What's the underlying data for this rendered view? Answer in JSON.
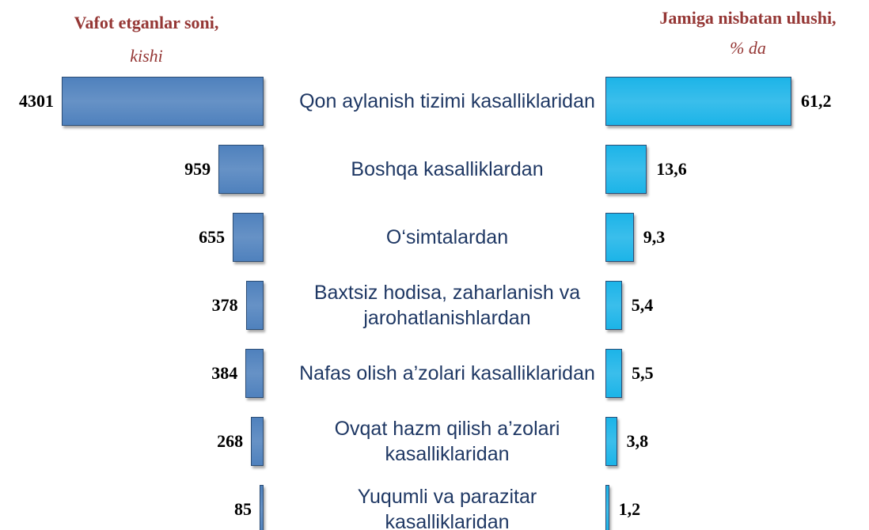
{
  "chart_data": {
    "type": "butterfly",
    "categories": [
      "Qon aylanish tizimi kasalliklaridan",
      "Boshqa kasalliklardan",
      "O‘simtalardan",
      "Baxtsiz hodisa, zaharlanish va jarohatlanishlardan",
      "Nafas olish a’zolari kasalliklaridan",
      "Ovqat hazm qilish a’zolari kasalliklaridan",
      "Yuqumli va parazitar kasalliklaridan"
    ],
    "series": [
      {
        "name": "Vafot etganlar soni,",
        "unit": "kishi",
        "color": "#4f81bd",
        "side": "left",
        "values": [
          4301,
          959,
          655,
          378,
          384,
          268,
          85
        ]
      },
      {
        "name": "Jamiga nisbatan ulushi,",
        "unit": "% da",
        "color": "#1cb4e8",
        "side": "right",
        "values": [
          61.2,
          13.6,
          9.3,
          5.4,
          5.5,
          3.8,
          1.2
        ],
        "value_labels": [
          "61,2",
          "13,6",
          "9,3",
          "5,4",
          "5,5",
          "3,8",
          "1,2"
        ]
      }
    ]
  }
}
